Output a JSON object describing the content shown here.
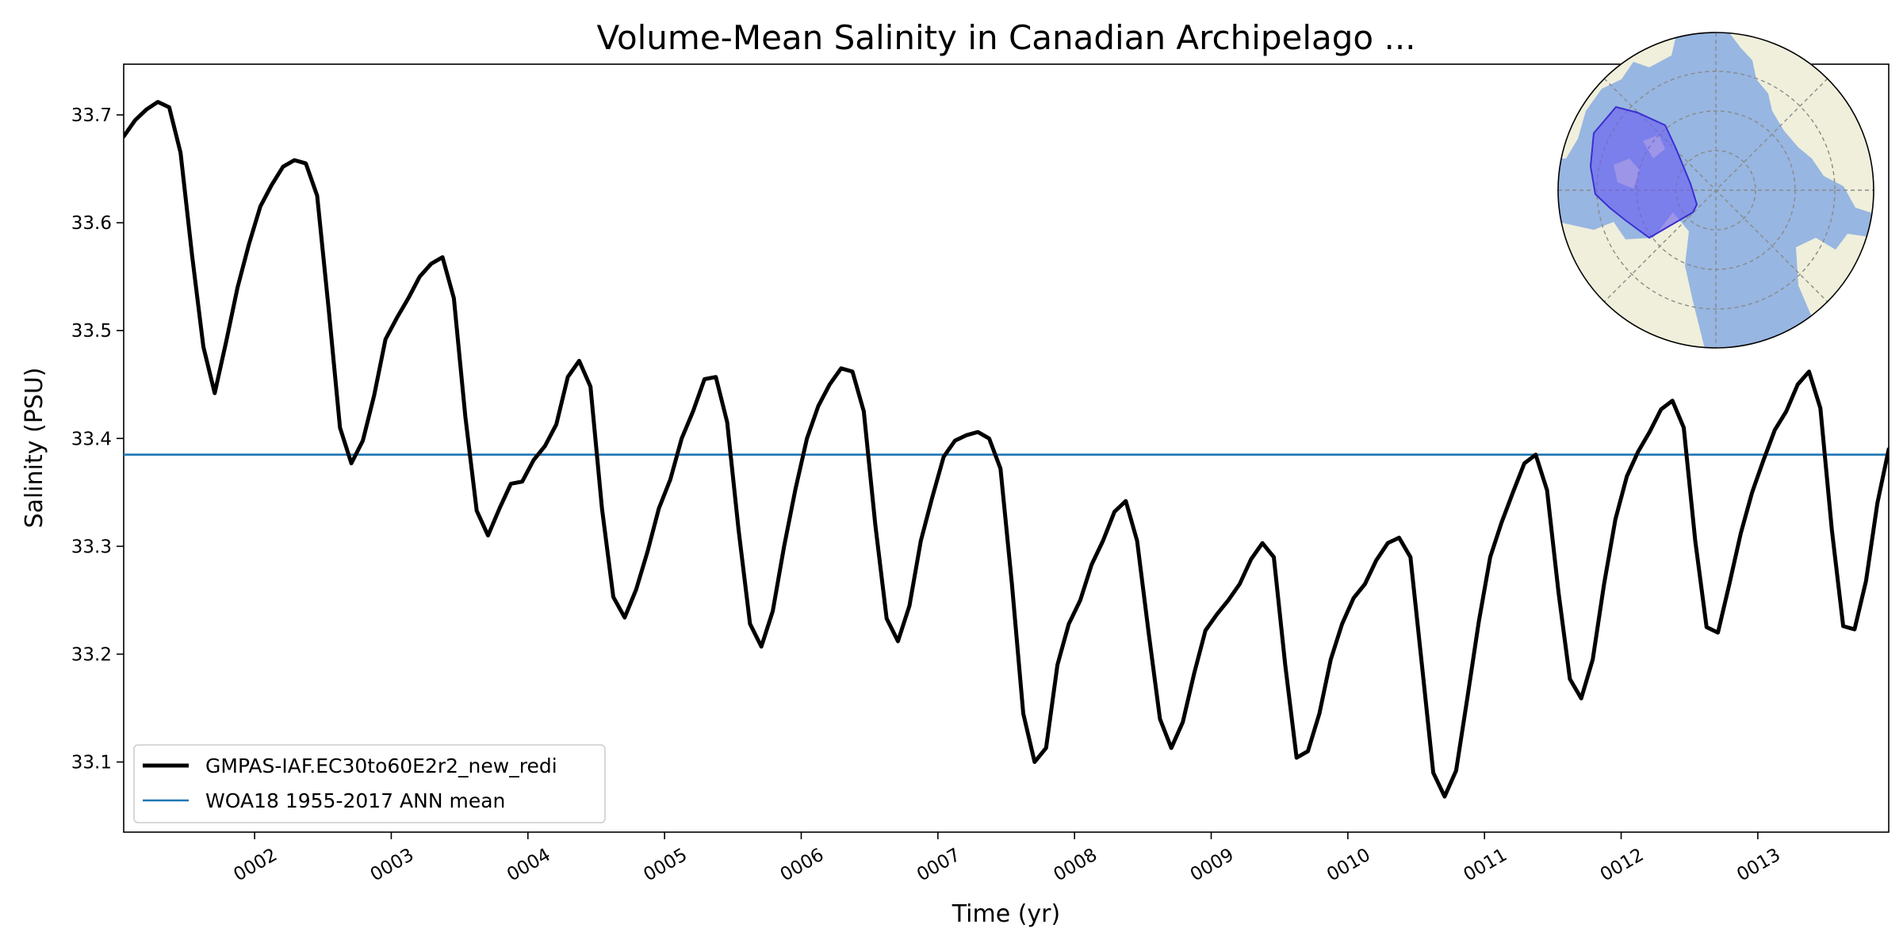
{
  "chart_data": {
    "type": "line",
    "title": "Volume-Mean Salinity in Canadian Archipelago ...",
    "xlabel": "Time (yr)",
    "ylabel": "Salinity (PSU)",
    "x_tick_labels": [
      "0002",
      "0003",
      "0004",
      "0005",
      "0006",
      "0007",
      "0008",
      "0009",
      "0010",
      "0011",
      "0012",
      "0013"
    ],
    "x_ticks": [
      2,
      3,
      4,
      5,
      6,
      7,
      8,
      9,
      10,
      11,
      12,
      13
    ],
    "xlim": [
      1.042,
      13.958
    ],
    "y_ticks": [
      33.1,
      33.2,
      33.3,
      33.4,
      33.5,
      33.6,
      33.7
    ],
    "y_tick_labels": [
      "33.1",
      "33.2",
      "33.3",
      "33.4",
      "33.5",
      "33.6",
      "33.7"
    ],
    "ylim": [
      33.035,
      33.747
    ],
    "grid": false,
    "legend_position": "lower-left",
    "inset_map": "north-polar stereographic map with Canadian Archipelago region highlighted",
    "colors": {
      "model": "#000000",
      "reference": "#1f77b4",
      "inset_land": "#efefdb",
      "inset_ocean": "#97b6e1",
      "inset_region": "#6a5ef0"
    },
    "series": [
      {
        "name": "GMPAS-IAF.EC30to60E2r2_new_redi",
        "x": [
          1.042,
          1.125,
          1.208,
          1.292,
          1.375,
          1.458,
          1.542,
          1.625,
          1.708,
          1.792,
          1.875,
          1.958,
          2.042,
          2.125,
          2.208,
          2.292,
          2.375,
          2.458,
          2.542,
          2.625,
          2.708,
          2.792,
          2.875,
          2.958,
          3.042,
          3.125,
          3.208,
          3.292,
          3.375,
          3.458,
          3.542,
          3.625,
          3.708,
          3.792,
          3.875,
          3.958,
          4.042,
          4.125,
          4.208,
          4.292,
          4.375,
          4.458,
          4.542,
          4.625,
          4.708,
          4.792,
          4.875,
          4.958,
          5.042,
          5.125,
          5.208,
          5.292,
          5.375,
          5.458,
          5.542,
          5.625,
          5.708,
          5.792,
          5.875,
          5.958,
          6.042,
          6.125,
          6.208,
          6.292,
          6.375,
          6.458,
          6.542,
          6.625,
          6.708,
          6.792,
          6.875,
          6.958,
          7.042,
          7.125,
          7.208,
          7.292,
          7.375,
          7.458,
          7.542,
          7.625,
          7.708,
          7.792,
          7.875,
          7.958,
          8.042,
          8.125,
          8.208,
          8.292,
          8.375,
          8.458,
          8.542,
          8.625,
          8.708,
          8.792,
          8.875,
          8.958,
          9.042,
          9.125,
          9.208,
          9.292,
          9.375,
          9.458,
          9.542,
          9.625,
          9.708,
          9.792,
          9.875,
          9.958,
          10.042,
          10.125,
          10.208,
          10.292,
          10.375,
          10.458,
          10.542,
          10.625,
          10.708,
          10.792,
          10.875,
          10.958,
          11.042,
          11.125,
          11.208,
          11.292,
          11.375,
          11.458,
          11.542,
          11.625,
          11.708,
          11.792,
          11.875,
          11.958,
          12.042,
          12.125,
          12.208,
          12.292,
          12.375,
          12.458,
          12.542,
          12.625,
          12.708,
          12.792,
          12.875,
          12.958,
          13.042,
          13.125,
          13.208,
          13.292,
          13.375,
          13.458,
          13.542,
          13.625,
          13.708,
          13.792,
          13.875,
          13.958
        ],
        "values": [
          33.68,
          33.695,
          33.705,
          33.712,
          33.707,
          33.665,
          33.57,
          33.485,
          33.442,
          33.49,
          33.54,
          33.58,
          33.615,
          33.635,
          33.652,
          33.658,
          33.655,
          33.625,
          33.52,
          33.41,
          33.377,
          33.398,
          33.44,
          33.492,
          33.512,
          33.53,
          33.55,
          33.562,
          33.568,
          33.53,
          33.42,
          33.333,
          33.31,
          33.335,
          33.358,
          33.36,
          33.38,
          33.393,
          33.413,
          33.457,
          33.472,
          33.448,
          33.335,
          33.253,
          33.234,
          33.26,
          33.295,
          33.335,
          33.362,
          33.4,
          33.425,
          33.455,
          33.457,
          33.415,
          33.315,
          33.228,
          33.207,
          33.24,
          33.3,
          33.353,
          33.4,
          33.43,
          33.45,
          33.465,
          33.462,
          33.425,
          33.32,
          33.233,
          33.212,
          33.245,
          33.305,
          33.345,
          33.383,
          33.398,
          33.403,
          33.406,
          33.4,
          33.372,
          33.265,
          33.145,
          33.1,
          33.113,
          33.19,
          33.228,
          33.25,
          33.283,
          33.305,
          33.332,
          33.342,
          33.305,
          33.22,
          33.14,
          33.113,
          33.137,
          33.182,
          33.222,
          33.237,
          33.25,
          33.265,
          33.288,
          33.303,
          33.29,
          33.19,
          33.104,
          33.11,
          33.145,
          33.195,
          33.228,
          33.252,
          33.265,
          33.287,
          33.303,
          33.308,
          33.29,
          33.19,
          33.09,
          33.068,
          33.092,
          33.16,
          33.23,
          33.29,
          33.322,
          33.35,
          33.377,
          33.385,
          33.352,
          33.257,
          33.177,
          33.159,
          33.195,
          33.265,
          33.325,
          33.365,
          33.388,
          33.406,
          33.427,
          33.435,
          33.41,
          33.305,
          33.225,
          33.22,
          33.265,
          33.312,
          33.35,
          33.38,
          33.408,
          33.425,
          33.45,
          33.462,
          33.428,
          33.315,
          33.226,
          33.223,
          33.268,
          33.34,
          33.39
        ]
      },
      {
        "name": "WOA18 1955-2017 ANN mean",
        "x": [
          1.042,
          13.958
        ],
        "values": [
          33.385,
          33.385
        ]
      }
    ]
  }
}
